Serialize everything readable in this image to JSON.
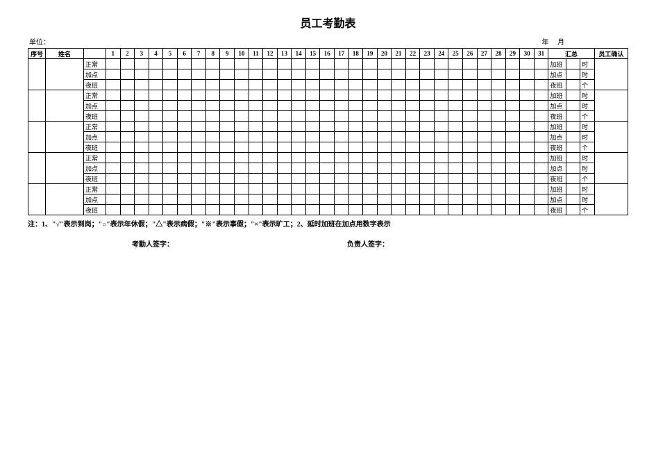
{
  "title": "员工考勤表",
  "meta": {
    "unit_label": "单位：",
    "year_label": "年",
    "month_label": "月"
  },
  "headers": {
    "seq": "序号",
    "name": "姓名",
    "type": "",
    "days": [
      "1",
      "2",
      "3",
      "4",
      "5",
      "6",
      "7",
      "8",
      "9",
      "10",
      "11",
      "12",
      "13",
      "14",
      "15",
      "16",
      "17",
      "18",
      "19",
      "20",
      "21",
      "22",
      "23",
      "24",
      "25",
      "26",
      "27",
      "28",
      "29",
      "30",
      "31"
    ],
    "summary": "汇总",
    "confirm": "员工确认"
  },
  "row_types": {
    "normal": "正常",
    "extra": "加点",
    "night": "夜班"
  },
  "summary_labels": {
    "overtime": "加班",
    "extra": "加点",
    "night": "夜班",
    "unit_hour": "时",
    "unit_count": "个"
  },
  "employees": [
    {
      "seq": "",
      "name": ""
    },
    {
      "seq": "",
      "name": ""
    },
    {
      "seq": "",
      "name": ""
    },
    {
      "seq": "",
      "name": ""
    },
    {
      "seq": "",
      "name": ""
    }
  ],
  "note": "注：1、\"√\"表示到岗；\"○\"表示年休假；\"△\"表示病假；\"※\"表示事假；\"×\"表示旷工；2、延时加班在加点用数字表示",
  "signatures": {
    "attendance": "考勤人签字：",
    "responsible": "负责人签字："
  }
}
